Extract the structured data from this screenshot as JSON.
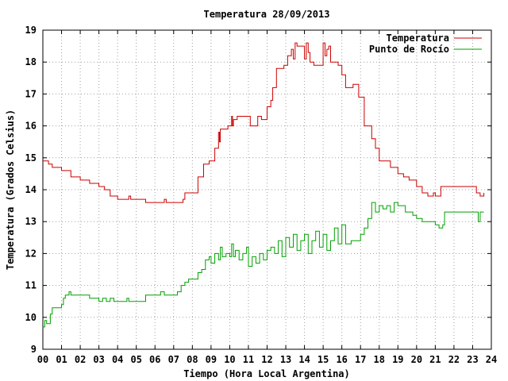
{
  "chart_data": {
    "type": "line",
    "title": "Temperatura 28/09/2013",
    "xlabel": "Tiempo (Hora Local Argentina)",
    "ylabel": "Temperatura (Grados Celsius)",
    "xlim": [
      0,
      24
    ],
    "ylim": [
      9,
      19
    ],
    "x_ticks": [
      "00",
      "01",
      "02",
      "03",
      "04",
      "05",
      "06",
      "07",
      "08",
      "09",
      "10",
      "11",
      "12",
      "13",
      "14",
      "15",
      "16",
      "17",
      "18",
      "19",
      "20",
      "21",
      "22",
      "23",
      "24"
    ],
    "y_ticks": [
      "9",
      "10",
      "11",
      "12",
      "13",
      "14",
      "15",
      "16",
      "17",
      "18",
      "19"
    ],
    "grid": true,
    "legend_position": "top-right",
    "series": [
      {
        "name": "Temperatura",
        "color": "#cc0000",
        "x": [
          0,
          0.3,
          0.5,
          1.0,
          1.5,
          2.0,
          2.5,
          3.0,
          3.3,
          3.6,
          4.0,
          4.5,
          4.6,
          4.7,
          5.0,
          5.5,
          6.0,
          6.5,
          6.6,
          6.7,
          7.0,
          7.5,
          7.6,
          8.0,
          8.3,
          8.6,
          8.9,
          9.2,
          9.4,
          9.45,
          9.5,
          9.6,
          9.7,
          9.9,
          10.1,
          10.15,
          10.2,
          10.3,
          10.4,
          10.6,
          11.0,
          11.1,
          11.3,
          11.5,
          11.7,
          11.9,
          12.0,
          12.2,
          12.3,
          12.5,
          12.7,
          12.9,
          13.1,
          13.3,
          13.4,
          13.5,
          13.6,
          13.8,
          14.0,
          14.1,
          14.2,
          14.3,
          14.5,
          14.8,
          15.0,
          15.1,
          15.2,
          15.3,
          15.4,
          15.6,
          15.8,
          16.0,
          16.2,
          16.4,
          16.6,
          16.9,
          17.2,
          17.4,
          17.6,
          17.8,
          18.0,
          18.2,
          18.4,
          18.6,
          19.0,
          19.3,
          19.6,
          20.0,
          20.3,
          20.6,
          20.9,
          21.0,
          21.2,
          21.3,
          21.5,
          22.0,
          22.5,
          23.0,
          23.2,
          23.4,
          23.6
        ],
        "y": [
          14.9,
          14.8,
          14.7,
          14.6,
          14.4,
          14.3,
          14.2,
          14.1,
          14.0,
          13.8,
          13.7,
          13.7,
          13.8,
          13.7,
          13.7,
          13.6,
          13.6,
          13.7,
          13.6,
          13.6,
          13.6,
          13.7,
          13.9,
          13.9,
          14.4,
          14.8,
          14.9,
          15.3,
          15.8,
          15.5,
          15.9,
          15.9,
          15.9,
          16.0,
          16.3,
          16.0,
          16.2,
          16.2,
          16.3,
          16.3,
          16.3,
          16.0,
          16.0,
          16.3,
          16.2,
          16.2,
          16.6,
          16.8,
          17.2,
          17.8,
          17.8,
          17.9,
          18.2,
          18.4,
          18.1,
          18.6,
          18.5,
          18.5,
          18.1,
          18.6,
          18.3,
          18.0,
          17.9,
          17.9,
          18.6,
          18.2,
          18.4,
          18.5,
          18.0,
          18.0,
          17.9,
          17.6,
          17.2,
          17.2,
          17.3,
          16.9,
          16.0,
          16.0,
          15.6,
          15.3,
          14.9,
          14.9,
          14.9,
          14.7,
          14.5,
          14.4,
          14.3,
          14.1,
          13.9,
          13.8,
          13.9,
          13.8,
          13.8,
          14.1,
          14.1,
          14.1,
          14.1,
          14.1,
          13.9,
          13.8,
          13.9
        ]
      },
      {
        "name": "Punto de Rocío",
        "color": "#00a000",
        "x": [
          0,
          0.1,
          0.2,
          0.4,
          0.5,
          0.6,
          0.8,
          1.0,
          1.1,
          1.2,
          1.4,
          1.5,
          1.6,
          2.0,
          2.5,
          2.8,
          3.0,
          3.2,
          3.4,
          3.6,
          3.8,
          4.0,
          4.3,
          4.5,
          4.6,
          4.8,
          5.0,
          5.5,
          5.8,
          6.0,
          6.3,
          6.5,
          6.7,
          7.0,
          7.2,
          7.4,
          7.6,
          7.8,
          8.0,
          8.3,
          8.5,
          8.7,
          8.9,
          9.0,
          9.2,
          9.4,
          9.5,
          9.6,
          9.8,
          10.0,
          10.1,
          10.2,
          10.3,
          10.5,
          10.7,
          10.9,
          11.0,
          11.2,
          11.4,
          11.6,
          11.8,
          12.0,
          12.2,
          12.4,
          12.6,
          12.8,
          13.0,
          13.2,
          13.4,
          13.6,
          13.8,
          14.0,
          14.2,
          14.4,
          14.6,
          14.8,
          15.0,
          15.2,
          15.4,
          15.6,
          15.8,
          16.0,
          16.2,
          16.5,
          16.8,
          17.0,
          17.2,
          17.4,
          17.6,
          17.8,
          18.0,
          18.2,
          18.4,
          18.6,
          18.8,
          19.0,
          19.4,
          19.8,
          20.0,
          20.3,
          20.6,
          20.9,
          21.0,
          21.2,
          21.4,
          21.5,
          22.0,
          22.5,
          23.0,
          23.2,
          23.3,
          23.4,
          23.6
        ],
        "y": [
          9.7,
          9.9,
          9.8,
          10.1,
          10.3,
          10.3,
          10.3,
          10.4,
          10.6,
          10.7,
          10.8,
          10.7,
          10.7,
          10.7,
          10.6,
          10.6,
          10.5,
          10.6,
          10.5,
          10.6,
          10.5,
          10.5,
          10.5,
          10.6,
          10.5,
          10.5,
          10.5,
          10.7,
          10.7,
          10.7,
          10.8,
          10.7,
          10.7,
          10.7,
          10.8,
          11.0,
          11.1,
          11.2,
          11.2,
          11.4,
          11.5,
          11.8,
          11.9,
          11.7,
          12.0,
          11.8,
          12.2,
          11.9,
          12.0,
          11.9,
          12.3,
          11.9,
          12.1,
          11.8,
          12.0,
          12.2,
          11.6,
          11.9,
          11.7,
          12.0,
          11.8,
          12.1,
          12.2,
          12.0,
          12.4,
          11.9,
          12.5,
          12.2,
          12.6,
          12.1,
          12.4,
          12.6,
          12.0,
          12.4,
          12.7,
          12.2,
          12.6,
          12.1,
          12.4,
          12.8,
          12.3,
          12.9,
          12.3,
          12.4,
          12.4,
          12.6,
          12.8,
          13.1,
          13.6,
          13.3,
          13.5,
          13.4,
          13.5,
          13.3,
          13.6,
          13.5,
          13.3,
          13.2,
          13.1,
          13.0,
          13.0,
          13.0,
          12.9,
          12.8,
          12.9,
          13.3,
          13.3,
          13.3,
          13.3,
          13.3,
          13.0,
          13.3,
          13.3
        ]
      }
    ]
  }
}
